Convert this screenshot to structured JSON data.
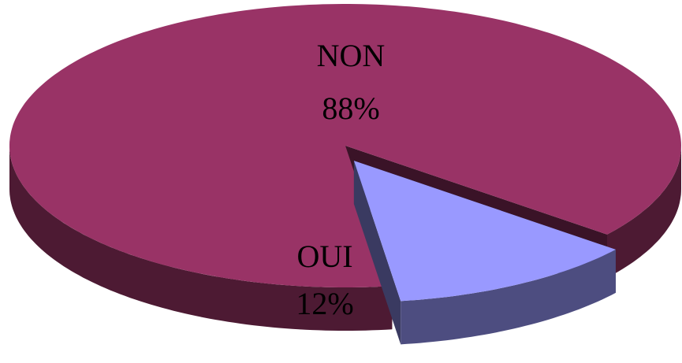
{
  "chart_data": {
    "type": "pie",
    "categories": [
      "NON",
      "OUI"
    ],
    "values": [
      88,
      12
    ],
    "value_labels": [
      "88%",
      "12%"
    ],
    "colors": [
      "#993366",
      "#9999ff"
    ]
  }
}
